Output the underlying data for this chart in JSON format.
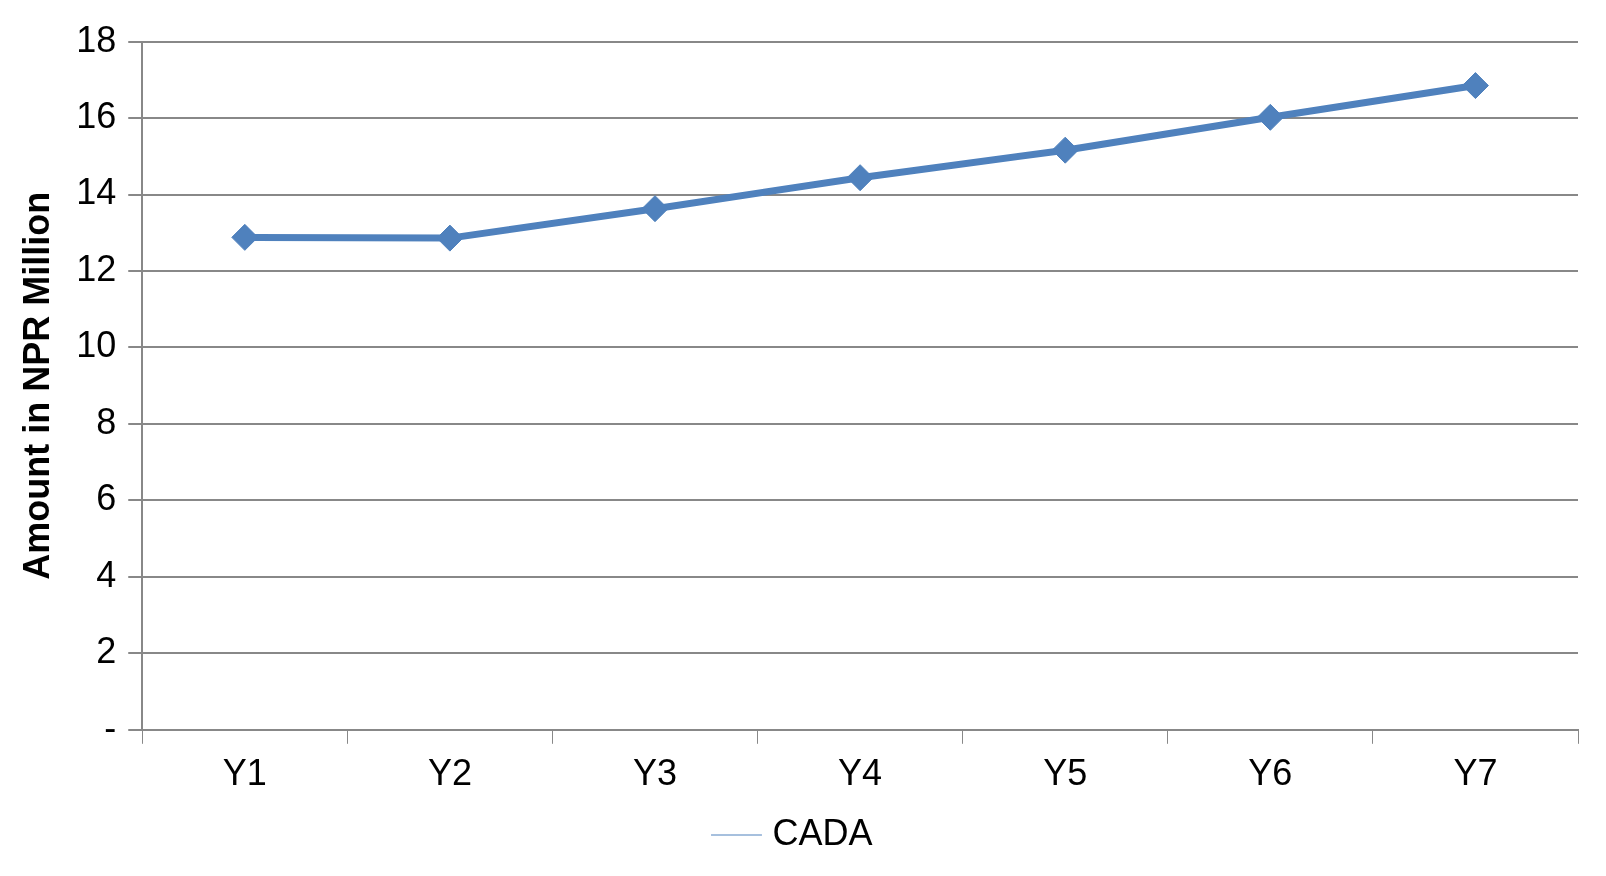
{
  "chart_data": {
    "type": "line",
    "ylabel": "Amount in NPR Million",
    "categories": [
      "Y1",
      "Y2",
      "Y3",
      "Y4",
      "Y5",
      "Y6",
      "Y7"
    ],
    "series": [
      {
        "name": "CADA",
        "color": "#4f81bd",
        "values": [
          12.88,
          12.86,
          13.63,
          14.44,
          15.16,
          16.02,
          16.85
        ]
      }
    ],
    "ylim": [
      0,
      18
    ],
    "yticks": [
      {
        "value": 0,
        "label": "-"
      },
      2,
      4,
      6,
      8,
      10,
      12,
      14,
      16,
      18
    ],
    "grid": "y",
    "legend": "bottom",
    "marker": "diamond",
    "line_style": "solid"
  }
}
